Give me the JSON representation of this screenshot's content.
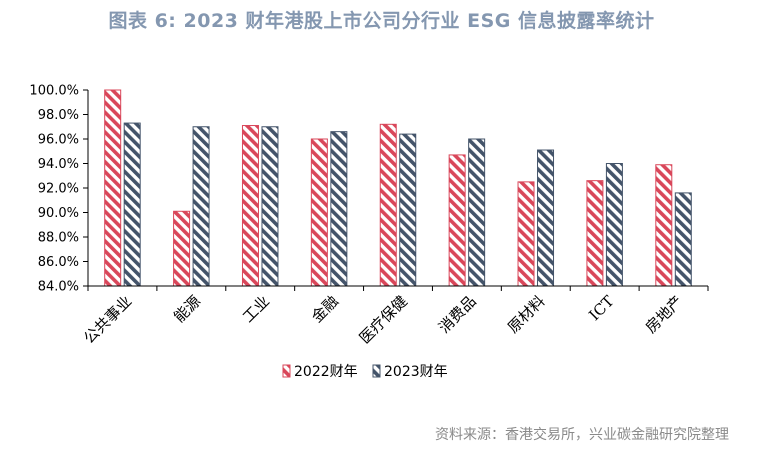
{
  "title": "图表 6:  2023 财年港股上市公司分行业 ESG 信息披露率统计",
  "source": "资料来源：香港交易所，兴业碳金融研究院整理",
  "chart_data": {
    "type": "bar",
    "title": "图表 6:  2023 财年港股上市公司分行业 ESG 信息披露率统计",
    "categories": [
      "公共事业",
      "能源",
      "工业",
      "金融",
      "医疗保健",
      "消费品",
      "原材料",
      "ICT",
      "房地产"
    ],
    "series": [
      {
        "name": "2022财年",
        "values": [
          100.0,
          90.1,
          97.1,
          96.0,
          97.2,
          94.7,
          92.5,
          92.6,
          93.9
        ],
        "color": "#d9475a",
        "pattern": "diagonal-stripe"
      },
      {
        "name": "2023财年",
        "values": [
          97.3,
          97.0,
          97.0,
          96.6,
          96.4,
          96.0,
          95.1,
          94.0,
          91.6
        ],
        "color": "#44546a",
        "pattern": "diagonal-stripe"
      }
    ],
    "ylim": [
      84.0,
      100.0
    ],
    "yticks": [
      "84.0%",
      "86.0%",
      "88.0%",
      "90.0%",
      "92.0%",
      "94.0%",
      "96.0%",
      "98.0%",
      "100.0%"
    ],
    "grid": false,
    "legend": "bottom-center"
  }
}
